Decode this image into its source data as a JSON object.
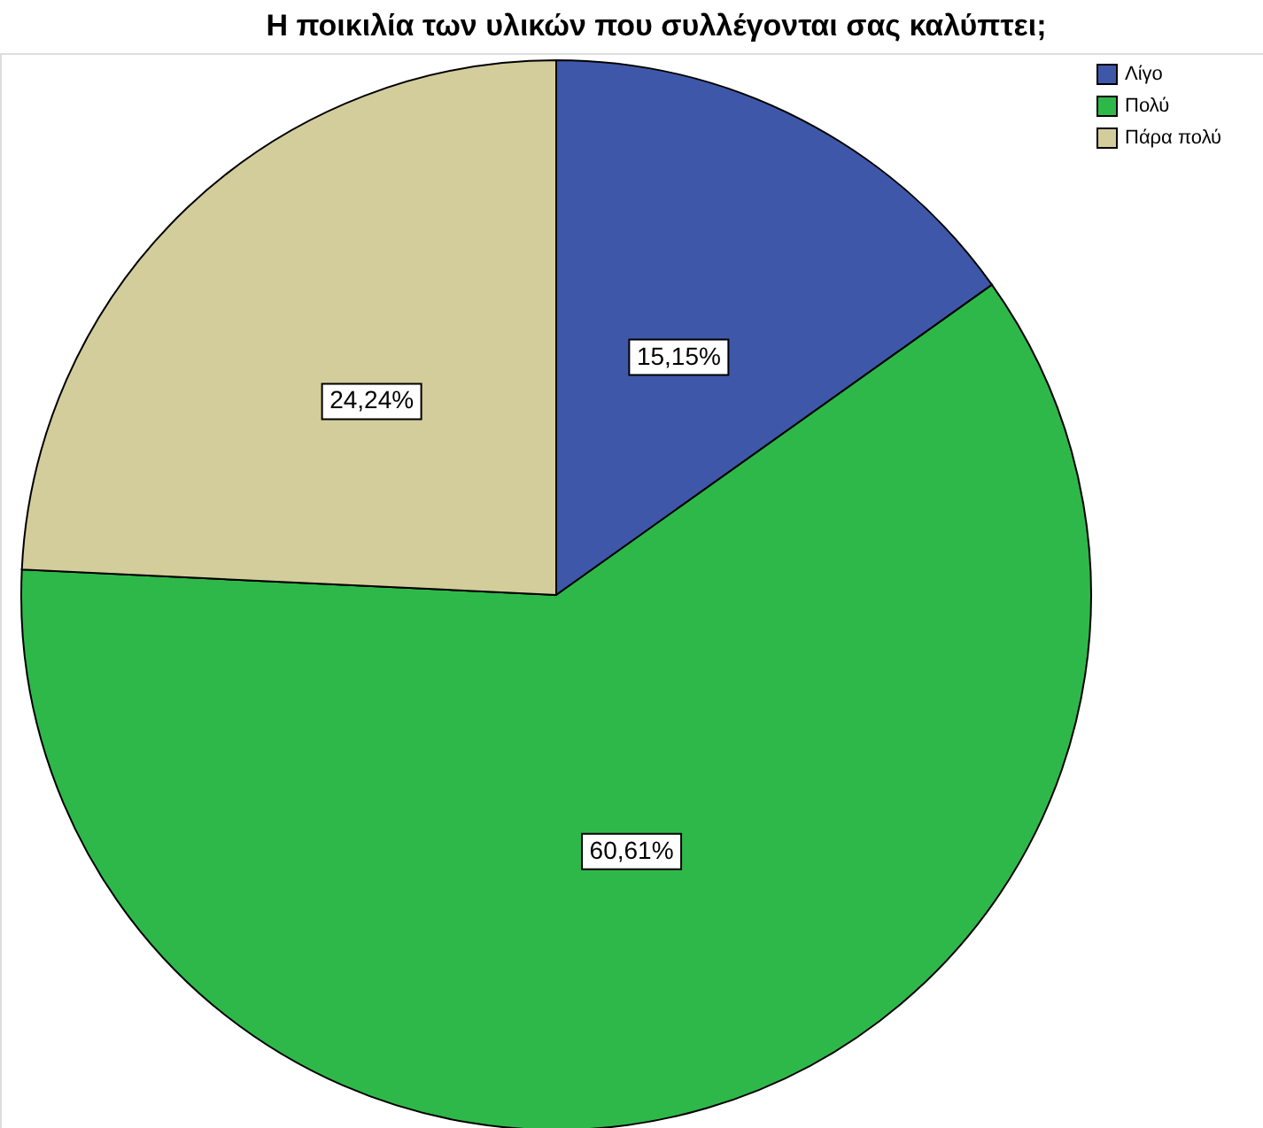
{
  "chart_data": {
    "type": "pie",
    "title": "Η ποικιλία των υλικών που συλλέγονται σας καλύπτει;",
    "categories": [
      "Λίγο",
      "Πολύ",
      "Πάρα πολύ"
    ],
    "values": [
      15.15,
      60.61,
      24.24
    ],
    "colors": [
      "#3f57a8",
      "#2fb84a",
      "#d3cd9b"
    ],
    "value_labels": [
      "15,15%",
      "60,61%",
      "24,24%"
    ],
    "legend": "top right"
  }
}
